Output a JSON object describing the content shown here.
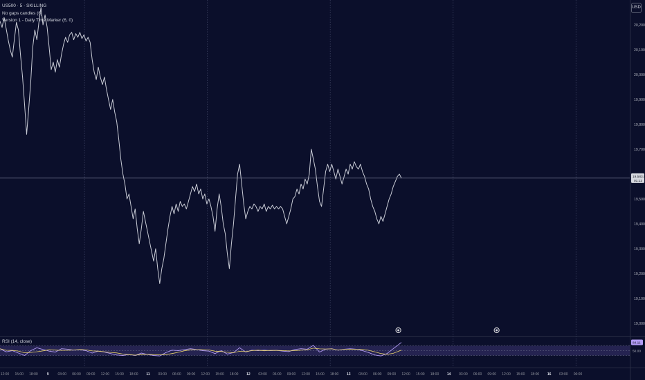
{
  "legend": {
    "symbol": "US500 · 5 · SKILLING",
    "indicator_1": "No gaps candles (6)",
    "indicator_2": "Version 1 - Daily Time Marker (6, 0)"
  },
  "currency": "USD",
  "rsi_pane": {
    "title": "RSI (14, close)",
    "last_value": "84.11",
    "mid_label": "50.00",
    "upper_band": 70,
    "lower_band": 30,
    "ylim": [
      0,
      100
    ]
  },
  "colors": {
    "background": "#0b0f2b",
    "price_line": "#c9ccd6",
    "rsi_line": "#b39cf5",
    "rsi_ma": "#e8d26a",
    "rsi_band_fill": "#2a2758",
    "crosshair": "#8a8fa8",
    "marker_border": "#e0e0e0"
  },
  "chart_data": {
    "type": "line",
    "title": "",
    "xlabel": "",
    "ylabel": "",
    "ylim": [
      18950,
      20300
    ],
    "y_ticks": [
      "20,200.0",
      "20,100.0",
      "20,000.0",
      "19,900.0",
      "19,800.0",
      "19,700.0",
      "19,500.0",
      "19,400.0",
      "19,300.0",
      "19,200.0",
      "19,100.0",
      "19,000.0"
    ],
    "y_tick_values": [
      20200,
      20100,
      20000,
      19900,
      19800,
      19700,
      19500,
      19400,
      19300,
      19200,
      19100,
      19000
    ],
    "last_price_label": "19,583.8",
    "last_price_sub": "01:12",
    "last_price_value": 19583.8,
    "x_ticks": [
      "12:00",
      "15:00",
      "18:00",
      "9",
      "03:00",
      "06:00",
      "09:00",
      "12:00",
      "15:00",
      "18:00",
      "11",
      "03:00",
      "06:00",
      "09:00",
      "12:00",
      "15:00",
      "18:00",
      "12",
      "03:00",
      "06:00",
      "09:00",
      "12:00",
      "15:00",
      "18:00",
      "13",
      "03:00",
      "06:00",
      "09:00",
      "12:00",
      "15:00",
      "18:00",
      "14",
      "03:00",
      "06:00",
      "09:00",
      "12:00",
      "15:00",
      "18:00",
      "16",
      "03:00",
      "06:00"
    ],
    "bold_x_ticks": [
      "9",
      "11",
      "12",
      "13",
      "14",
      "16"
    ],
    "x_span_hours": [
      0,
      123
    ],
    "series": [
      {
        "values": [
          [
            0,
            20215
          ],
          [
            0.4,
            20190
          ],
          [
            0.8,
            20230
          ],
          [
            1.2,
            20185
          ],
          [
            1.6,
            20140
          ],
          [
            2.0,
            20100
          ],
          [
            2.4,
            20070
          ],
          [
            2.8,
            20140
          ],
          [
            3.2,
            20210
          ],
          [
            3.6,
            20180
          ],
          [
            4.0,
            20080
          ],
          [
            4.4,
            19990
          ],
          [
            4.8,
            19880
          ],
          [
            5.2,
            19760
          ],
          [
            5.6,
            19860
          ],
          [
            6.0,
            19970
          ],
          [
            6.4,
            20110
          ],
          [
            6.8,
            20180
          ],
          [
            7.2,
            20140
          ],
          [
            7.6,
            20210
          ],
          [
            8.0,
            20270
          ],
          [
            8.4,
            20200
          ],
          [
            8.8,
            20240
          ],
          [
            9.2,
            20190
          ],
          [
            9.6,
            20110
          ],
          [
            10.0,
            20020
          ],
          [
            10.4,
            20050
          ],
          [
            10.8,
            20010
          ],
          [
            11.2,
            20060
          ],
          [
            11.6,
            20030
          ],
          [
            12.0,
            20080
          ],
          [
            12.4,
            20120
          ],
          [
            12.8,
            20150
          ],
          [
            13.2,
            20130
          ],
          [
            13.6,
            20160
          ],
          [
            14.0,
            20170
          ],
          [
            14.4,
            20140
          ],
          [
            14.8,
            20165
          ],
          [
            15.2,
            20150
          ],
          [
            15.6,
            20170
          ],
          [
            16.0,
            20145
          ],
          [
            16.4,
            20160
          ],
          [
            16.8,
            20135
          ],
          [
            17.2,
            20150
          ],
          [
            17.6,
            20130
          ],
          [
            18.0,
            20060
          ],
          [
            18.4,
            20010
          ],
          [
            18.8,
            19980
          ],
          [
            19.2,
            20030
          ],
          [
            19.6,
            19990
          ],
          [
            20.0,
            19960
          ],
          [
            20.4,
            19990
          ],
          [
            20.8,
            19940
          ],
          [
            21.2,
            19900
          ],
          [
            21.6,
            19860
          ],
          [
            22.0,
            19900
          ],
          [
            22.4,
            19850
          ],
          [
            22.8,
            19810
          ],
          [
            23.2,
            19740
          ],
          [
            23.6,
            19660
          ],
          [
            24.0,
            19600
          ],
          [
            24.4,
            19560
          ],
          [
            24.8,
            19500
          ],
          [
            25.2,
            19520
          ],
          [
            25.6,
            19470
          ],
          [
            26.0,
            19420
          ],
          [
            26.4,
            19460
          ],
          [
            26.8,
            19380
          ],
          [
            27.2,
            19320
          ],
          [
            27.6,
            19380
          ],
          [
            28.0,
            19450
          ],
          [
            28.4,
            19410
          ],
          [
            28.8,
            19370
          ],
          [
            29.2,
            19330
          ],
          [
            29.6,
            19290
          ],
          [
            30.0,
            19250
          ],
          [
            30.4,
            19300
          ],
          [
            30.8,
            19220
          ],
          [
            31.2,
            19160
          ],
          [
            31.6,
            19220
          ],
          [
            32.0,
            19260
          ],
          [
            32.4,
            19320
          ],
          [
            32.8,
            19380
          ],
          [
            33.2,
            19430
          ],
          [
            33.6,
            19470
          ],
          [
            34.0,
            19440
          ],
          [
            34.4,
            19480
          ],
          [
            34.8,
            19450
          ],
          [
            35.2,
            19490
          ],
          [
            35.6,
            19470
          ],
          [
            36.0,
            19480
          ],
          [
            36.4,
            19460
          ],
          [
            36.8,
            19490
          ],
          [
            37.2,
            19520
          ],
          [
            37.6,
            19550
          ],
          [
            38.0,
            19530
          ],
          [
            38.4,
            19560
          ],
          [
            38.8,
            19520
          ],
          [
            39.2,
            19540
          ],
          [
            39.6,
            19500
          ],
          [
            40.0,
            19520
          ],
          [
            40.4,
            19480
          ],
          [
            40.8,
            19500
          ],
          [
            41.2,
            19470
          ],
          [
            41.6,
            19430
          ],
          [
            42.0,
            19370
          ],
          [
            42.4,
            19460
          ],
          [
            42.8,
            19520
          ],
          [
            43.2,
            19470
          ],
          [
            43.6,
            19400
          ],
          [
            44.0,
            19360
          ],
          [
            44.4,
            19280
          ],
          [
            44.8,
            19220
          ],
          [
            45.2,
            19320
          ],
          [
            45.6,
            19400
          ],
          [
            46.0,
            19500
          ],
          [
            46.4,
            19600
          ],
          [
            46.8,
            19640
          ],
          [
            47.2,
            19560
          ],
          [
            47.6,
            19480
          ],
          [
            48.0,
            19420
          ],
          [
            48.4,
            19450
          ],
          [
            48.8,
            19470
          ],
          [
            49.2,
            19460
          ],
          [
            49.6,
            19480
          ],
          [
            50.0,
            19470
          ],
          [
            50.4,
            19450
          ],
          [
            50.8,
            19470
          ],
          [
            51.2,
            19460
          ],
          [
            51.6,
            19480
          ],
          [
            52.0,
            19450
          ],
          [
            52.4,
            19470
          ],
          [
            52.8,
            19460
          ],
          [
            53.2,
            19475
          ],
          [
            53.6,
            19460
          ],
          [
            54.0,
            19470
          ],
          [
            54.4,
            19460
          ],
          [
            54.8,
            19470
          ],
          [
            55.2,
            19460
          ],
          [
            55.6,
            19430
          ],
          [
            56.0,
            19400
          ],
          [
            56.4,
            19430
          ],
          [
            56.8,
            19460
          ],
          [
            57.2,
            19500
          ],
          [
            57.6,
            19510
          ],
          [
            58.0,
            19540
          ],
          [
            58.4,
            19520
          ],
          [
            58.8,
            19560
          ],
          [
            59.2,
            19540
          ],
          [
            59.6,
            19580
          ],
          [
            60.0,
            19560
          ],
          [
            60.4,
            19600
          ],
          [
            60.8,
            19700
          ],
          [
            61.2,
            19660
          ],
          [
            61.6,
            19620
          ],
          [
            62.0,
            19550
          ],
          [
            62.4,
            19490
          ],
          [
            62.8,
            19470
          ],
          [
            63.2,
            19540
          ],
          [
            63.6,
            19610
          ],
          [
            64.0,
            19640
          ],
          [
            64.4,
            19610
          ],
          [
            64.8,
            19640
          ],
          [
            65.2,
            19610
          ],
          [
            65.6,
            19580
          ],
          [
            66.0,
            19620
          ],
          [
            66.4,
            19590
          ],
          [
            66.8,
            19560
          ],
          [
            67.2,
            19590
          ],
          [
            67.6,
            19620
          ],
          [
            68.0,
            19600
          ],
          [
            68.4,
            19640
          ],
          [
            68.8,
            19620
          ],
          [
            69.2,
            19650
          ],
          [
            69.6,
            19630
          ],
          [
            70.0,
            19620
          ],
          [
            70.4,
            19640
          ],
          [
            70.8,
            19610
          ],
          [
            71.2,
            19590
          ],
          [
            71.6,
            19560
          ],
          [
            72.0,
            19540
          ],
          [
            72.4,
            19500
          ],
          [
            72.8,
            19470
          ],
          [
            73.2,
            19450
          ],
          [
            73.6,
            19420
          ],
          [
            74.0,
            19400
          ],
          [
            74.4,
            19430
          ],
          [
            74.8,
            19410
          ],
          [
            75.2,
            19440
          ],
          [
            75.6,
            19470
          ],
          [
            76.0,
            19500
          ],
          [
            76.4,
            19520
          ],
          [
            76.8,
            19550
          ],
          [
            77.2,
            19570
          ],
          [
            77.6,
            19590
          ],
          [
            78.0,
            19600
          ],
          [
            78.4,
            19584
          ]
        ]
      }
    ],
    "rsi_series": {
      "name": "RSI (14, close)",
      "values": [
        [
          0,
          58
        ],
        [
          1.2,
          45
        ],
        [
          2.4,
          50
        ],
        [
          3.6,
          40
        ],
        [
          4.8,
          30
        ],
        [
          6.0,
          50
        ],
        [
          7.2,
          62
        ],
        [
          8.4,
          55
        ],
        [
          9.6,
          48
        ],
        [
          10.8,
          44
        ],
        [
          12.0,
          58
        ],
        [
          13.2,
          56
        ],
        [
          14.4,
          52
        ],
        [
          15.6,
          54
        ],
        [
          16.8,
          50
        ],
        [
          18.0,
          40
        ],
        [
          19.2,
          48
        ],
        [
          20.4,
          44
        ],
        [
          21.6,
          38
        ],
        [
          22.8,
          32
        ],
        [
          24.0,
          30
        ],
        [
          25.2,
          34
        ],
        [
          26.4,
          30
        ],
        [
          27.6,
          40
        ],
        [
          28.8,
          34
        ],
        [
          30.0,
          30
        ],
        [
          31.2,
          28
        ],
        [
          32.4,
          42
        ],
        [
          33.6,
          52
        ],
        [
          34.8,
          50
        ],
        [
          36.0,
          54
        ],
        [
          37.2,
          58
        ],
        [
          38.4,
          55
        ],
        [
          39.6,
          50
        ],
        [
          40.8,
          48
        ],
        [
          42.0,
          38
        ],
        [
          43.2,
          50
        ],
        [
          44.4,
          36
        ],
        [
          45.6,
          42
        ],
        [
          46.8,
          62
        ],
        [
          48.0,
          44
        ],
        [
          49.2,
          52
        ],
        [
          50.4,
          50
        ],
        [
          51.6,
          52
        ],
        [
          52.8,
          50
        ],
        [
          54.0,
          51
        ],
        [
          55.2,
          48
        ],
        [
          56.4,
          46
        ],
        [
          57.6,
          55
        ],
        [
          58.8,
          58
        ],
        [
          60.0,
          56
        ],
        [
          61.2,
          72
        ],
        [
          62.4,
          44
        ],
        [
          63.6,
          56
        ],
        [
          64.8,
          58
        ],
        [
          66.0,
          52
        ],
        [
          67.2,
          56
        ],
        [
          68.4,
          58
        ],
        [
          69.6,
          56
        ],
        [
          70.8,
          50
        ],
        [
          72.0,
          42
        ],
        [
          73.2,
          32
        ],
        [
          74.4,
          28
        ],
        [
          75.6,
          38
        ],
        [
          76.8,
          58
        ],
        [
          78.4,
          84.11
        ]
      ]
    }
  }
}
